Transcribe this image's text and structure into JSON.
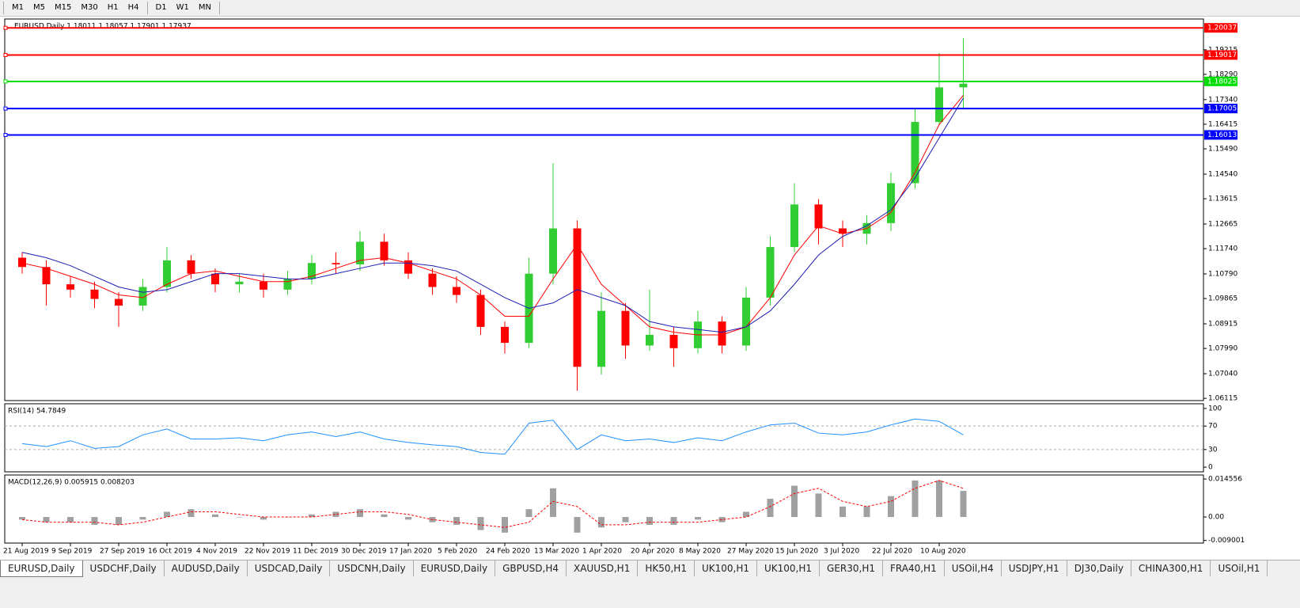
{
  "toolbar": {
    "timeframes_a": [
      "M1",
      "M5",
      "M15",
      "M30",
      "H1",
      "H4"
    ],
    "timeframes_b": [
      "D1",
      "W1",
      "MN"
    ]
  },
  "chart_data": [
    {
      "type": "candlestick",
      "title": "EURUSD,Daily  1.18011 1.18057 1.17901 1.17937",
      "categories": [
        "21 Aug 2019",
        null,
        "9 Sep 2019",
        null,
        "27 Sep 2019",
        null,
        "16 Oct 2019",
        null,
        "4 Nov 2019",
        null,
        "22 Nov 2019",
        null,
        "11 Dec 2019",
        null,
        "30 Dec 2019",
        null,
        "17 Jan 2020",
        null,
        "5 Feb 2020",
        null,
        "24 Feb 2020",
        null,
        "13 Mar 2020",
        null,
        "1 Apr 2020",
        null,
        "20 Apr 2020",
        null,
        "8 May 2020",
        null,
        "27 May 2020",
        null,
        "15 Jun 2020",
        null,
        "3 Jul 2020",
        null,
        "22 Jul 2020",
        null,
        "10 Aug 2020",
        null
      ],
      "open": [
        1.114,
        1.1105,
        1.104,
        1.102,
        1.0985,
        1.096,
        1.103,
        1.113,
        1.108,
        1.104,
        1.105,
        1.102,
        1.106,
        1.112,
        1.1115,
        1.12,
        1.113,
        1.108,
        1.103,
        1.1,
        1.088,
        1.082,
        1.108,
        1.125,
        1.073,
        1.094,
        1.081,
        1.085,
        1.08,
        1.09,
        1.081,
        1.099,
        1.118,
        1.134,
        1.125,
        1.123,
        1.127,
        1.142,
        1.165,
        1.178
      ],
      "high": [
        1.116,
        1.113,
        1.107,
        1.105,
        1.101,
        1.106,
        1.118,
        1.115,
        1.11,
        1.108,
        1.108,
        1.109,
        1.115,
        1.116,
        1.124,
        1.123,
        1.116,
        1.11,
        1.107,
        1.102,
        1.09,
        1.114,
        1.1495,
        1.128,
        1.101,
        1.097,
        1.102,
        1.088,
        1.094,
        1.092,
        1.103,
        1.122,
        1.142,
        1.136,
        1.128,
        1.13,
        1.146,
        1.17,
        1.191,
        1.1965
      ],
      "low": [
        1.108,
        1.096,
        1.099,
        1.095,
        1.088,
        1.094,
        1.101,
        1.106,
        1.101,
        1.101,
        1.099,
        1.1,
        1.104,
        1.108,
        1.109,
        1.111,
        1.106,
        1.1,
        1.097,
        1.085,
        1.078,
        1.08,
        1.104,
        1.064,
        1.07,
        1.076,
        1.079,
        1.073,
        1.078,
        1.078,
        1.079,
        1.096,
        1.116,
        1.119,
        1.118,
        1.119,
        1.124,
        1.14,
        1.164,
        1.17
      ],
      "close": [
        1.1105,
        1.104,
        1.102,
        1.0985,
        1.096,
        1.103,
        1.113,
        1.108,
        1.104,
        1.105,
        1.102,
        1.106,
        1.112,
        1.1115,
        1.12,
        1.113,
        1.108,
        1.103,
        1.1,
        1.088,
        1.082,
        1.108,
        1.125,
        1.073,
        1.094,
        1.081,
        1.085,
        1.08,
        1.09,
        1.081,
        1.099,
        1.118,
        1.134,
        1.125,
        1.123,
        1.127,
        1.142,
        1.165,
        1.178,
        1.1794
      ],
      "up_color": "#32cd32",
      "down_color": "#ff0000",
      "moving_averages": [
        {
          "color": "#ff0000",
          "values": [
            1.112,
            1.11,
            1.107,
            1.104,
            1.1,
            1.099,
            1.104,
            1.108,
            1.109,
            1.107,
            1.105,
            1.105,
            1.107,
            1.11,
            1.113,
            1.114,
            1.112,
            1.109,
            1.106,
            1.1,
            1.092,
            1.092,
            1.106,
            1.119,
            1.104,
            1.096,
            1.088,
            1.086,
            1.085,
            1.085,
            1.088,
            1.099,
            1.115,
            1.126,
            1.123,
            1.125,
            1.131,
            1.146,
            1.164,
            1.175
          ]
        },
        {
          "color": "#1e1eb4",
          "values": [
            1.116,
            1.114,
            1.111,
            1.107,
            1.103,
            1.101,
            1.102,
            1.105,
            1.108,
            1.108,
            1.107,
            1.106,
            1.106,
            1.108,
            1.11,
            1.112,
            1.112,
            1.111,
            1.109,
            1.104,
            1.099,
            1.095,
            1.097,
            1.102,
            1.099,
            1.096,
            1.09,
            1.088,
            1.087,
            1.086,
            1.088,
            1.094,
            1.104,
            1.115,
            1.122,
            1.126,
            1.132,
            1.144,
            1.159,
            1.174
          ]
        }
      ],
      "levels": [
        {
          "value": 1.20037,
          "color": "#ff0000"
        },
        {
          "value": 1.19017,
          "color": "#ff0000"
        },
        {
          "value": 1.18025,
          "color": "#00dd00"
        },
        {
          "value": 1.17005,
          "color": "#0000ff"
        },
        {
          "value": 1.16013,
          "color": "#0000ff"
        }
      ],
      "ylim": [
        1.0603,
        1.2037
      ],
      "yticks": [
        1.19215,
        {
          "value": 1.1829,
          "label": "1.18290"
        },
        {
          "value": 1.1734,
          "label": "1.17340"
        },
        1.16415,
        {
          "value": 1.1549,
          "label": "1.15490"
        },
        {
          "value": 1.1454,
          "label": "1.14540"
        },
        1.13615,
        1.12665,
        {
          "value": 1.1174,
          "label": "1.11740"
        },
        {
          "value": 1.1079,
          "label": "1.10790"
        },
        1.09865,
        1.08915,
        {
          "value": 1.0799,
          "label": "1.07990"
        },
        {
          "value": 1.0704,
          "label": "1.07040"
        },
        1.06115
      ]
    },
    {
      "type": "line",
      "title": "RSI(14) 54.7849",
      "color": "#1e90ff",
      "values": [
        40,
        35,
        45,
        32,
        35,
        55,
        65,
        48,
        48,
        50,
        45,
        55,
        60,
        52,
        60,
        48,
        42,
        38,
        35,
        25,
        22,
        75,
        80,
        30,
        55,
        45,
        48,
        42,
        50,
        45,
        60,
        72,
        75,
        58,
        55,
        60,
        72,
        82,
        78,
        55
      ],
      "ylim": [
        -8,
        108
      ],
      "yticks": [
        0,
        30,
        70,
        100
      ],
      "levels": [
        30,
        70
      ]
    },
    {
      "type": "macd",
      "title": "MACD(12,26,9) 0.005915 0.008203",
      "color": "#a0a0a0",
      "signal_color": "#ff0000",
      "values": [
        -0.001,
        -0.002,
        -0.002,
        -0.003,
        -0.003,
        -0.001,
        0.002,
        0.003,
        0.001,
        0.0,
        -0.001,
        0.0,
        0.001,
        0.002,
        0.003,
        0.001,
        -0.001,
        -0.002,
        -0.003,
        -0.005,
        -0.006,
        0.003,
        0.011,
        -0.006,
        -0.004,
        -0.002,
        -0.003,
        -0.003,
        -0.001,
        -0.002,
        0.002,
        0.007,
        0.012,
        0.009,
        0.004,
        0.004,
        0.008,
        0.014,
        0.014,
        0.01
      ],
      "signal": [
        -0.001,
        -0.002,
        -0.002,
        -0.002,
        -0.003,
        -0.002,
        0.0,
        0.002,
        0.002,
        0.001,
        0.0,
        0.0,
        0.0,
        0.001,
        0.002,
        0.002,
        0.001,
        -0.001,
        -0.002,
        -0.003,
        -0.004,
        -0.002,
        0.006,
        0.004,
        -0.003,
        -0.003,
        -0.002,
        -0.002,
        -0.002,
        -0.001,
        0.0,
        0.004,
        0.009,
        0.011,
        0.006,
        0.004,
        0.006,
        0.011,
        0.014,
        0.011
      ],
      "ylim": [
        -0.01,
        0.0161
      ],
      "yticks": [
        {
          "value": -0.009001,
          "label": "-0.009001"
        },
        {
          "value": 0,
          "label": "0.00"
        },
        0.014556
      ]
    }
  ],
  "tabs": [
    "EURUSD,Daily",
    "USDCHF,Daily",
    "AUDUSD,Daily",
    "USDCAD,Daily",
    "USDCNH,Daily",
    "EURUSD,Daily",
    "GBPUSD,H4",
    "XAUUSD,H1",
    "HK50,H1",
    "UK100,H1",
    "UK100,H1",
    "GER30,H1",
    "FRA40,H1",
    "USOil,H4",
    "USDJPY,H1",
    "DJ30,Daily",
    "CHINA300,H1",
    "USOil,H1"
  ]
}
